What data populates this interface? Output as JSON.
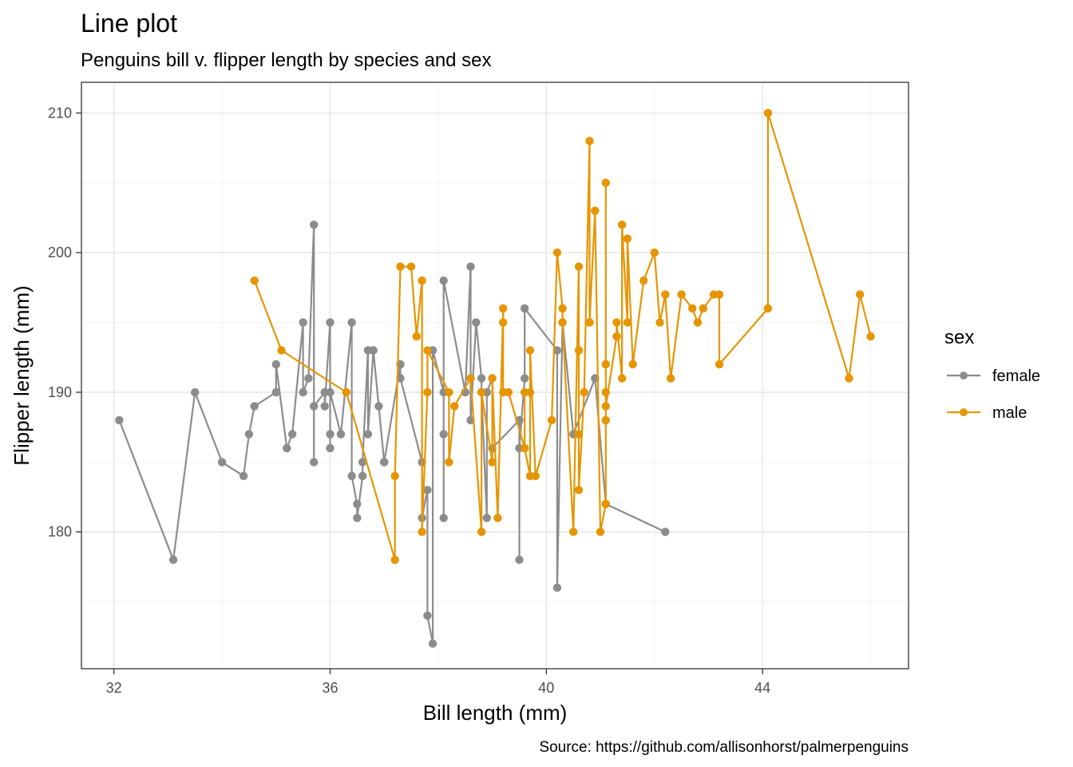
{
  "chart_data": {
    "type": "line",
    "title": "Line plot",
    "subtitle": "Penguins bill v. flipper length by species and sex",
    "caption": "Source: https://github.com/allisonhorst/palmerpenguins",
    "xlabel": "Bill length (mm)",
    "ylabel": "Flipper length (mm)",
    "xlim": [
      31.4,
      46.7
    ],
    "ylim": [
      170.2,
      212.2
    ],
    "x_ticks": [
      32,
      36,
      40,
      44
    ],
    "y_ticks": [
      180,
      190,
      200,
      210
    ],
    "grid": true,
    "legend": {
      "title": "sex",
      "position": "right",
      "entries": [
        "female",
        "male"
      ]
    },
    "colors": {
      "female": "#8c8c8c",
      "male": "#e69500"
    },
    "series": [
      {
        "name": "female",
        "x": [
          32.1,
          33.1,
          33.5,
          34.0,
          34.4,
          34.5,
          34.6,
          35.0,
          35.0,
          35.2,
          35.3,
          35.5,
          35.5,
          35.6,
          35.7,
          35.7,
          35.7,
          35.9,
          35.9,
          36.0,
          36.0,
          36.0,
          36.0,
          36.2,
          36.2,
          36.4,
          36.4,
          36.5,
          36.5,
          36.6,
          36.6,
          36.7,
          36.7,
          36.8,
          36.8,
          36.9,
          37.0,
          37.0,
          37.3,
          37.3,
          37.7,
          37.7,
          37.8,
          37.8,
          37.9,
          37.9,
          38.1,
          38.1,
          38.1,
          38.1,
          38.5,
          38.6,
          38.6,
          38.7,
          38.8,
          38.8,
          38.9,
          38.9,
          39.0,
          39.0,
          39.5,
          39.5,
          39.5,
          39.6,
          39.6,
          40.2,
          40.2,
          40.3,
          40.5,
          40.9,
          41.1,
          42.2
        ],
        "y": [
          188,
          178,
          190,
          185,
          184,
          187,
          189,
          190,
          192,
          186,
          187,
          195,
          190,
          191,
          202,
          185,
          189,
          190,
          189,
          195,
          187,
          186,
          190,
          187,
          187,
          195,
          184,
          182,
          181,
          184,
          185,
          193,
          187,
          193,
          193,
          189,
          185,
          185,
          192,
          191,
          185,
          181,
          183,
          174,
          172,
          193,
          190,
          187,
          181,
          198,
          190,
          199,
          188,
          195,
          191,
          190,
          181,
          190,
          191,
          186,
          188,
          178,
          186,
          191,
          196,
          193,
          176,
          195,
          187,
          191,
          182,
          180
        ]
      },
      {
        "name": "male",
        "x": [
          34.6,
          35.1,
          36.3,
          37.2,
          37.2,
          37.3,
          37.5,
          37.6,
          37.7,
          37.7,
          37.8,
          37.8,
          38.2,
          38.2,
          38.3,
          38.6,
          38.8,
          38.8,
          39.0,
          39.0,
          39.1,
          39.2,
          39.2,
          39.2,
          39.3,
          39.6,
          39.6,
          39.6,
          39.7,
          39.7,
          39.7,
          39.8,
          40.1,
          40.2,
          40.3,
          40.3,
          40.5,
          40.6,
          40.6,
          40.6,
          40.6,
          40.7,
          40.8,
          40.8,
          40.8,
          40.9,
          41.0,
          41.1,
          41.1,
          41.1,
          41.1,
          41.1,
          41.1,
          41.3,
          41.3,
          41.4,
          41.4,
          41.5,
          41.5,
          41.6,
          41.8,
          42.0,
          42.1,
          42.2,
          42.3,
          42.5,
          42.7,
          42.8,
          42.9,
          43.1,
          43.2,
          43.2,
          44.1,
          44.1,
          45.6,
          45.8,
          46.0
        ],
        "y": [
          198,
          193,
          190,
          178,
          184,
          199,
          199,
          194,
          198,
          180,
          190,
          193,
          190,
          185,
          189,
          191,
          180,
          190,
          185,
          191,
          181,
          196,
          195,
          190,
          190,
          186,
          190,
          186,
          184,
          190,
          193,
          184,
          188,
          200,
          196,
          195,
          180,
          199,
          193,
          187,
          183,
          190,
          208,
          195,
          195,
          203,
          180,
          182,
          192,
          205,
          190,
          188,
          189,
          194,
          195,
          191,
          202,
          195,
          201,
          192,
          198,
          200,
          195,
          197,
          191,
          197,
          196,
          195,
          196,
          197,
          197,
          192,
          196,
          210,
          191,
          197,
          194
        ]
      }
    ]
  }
}
